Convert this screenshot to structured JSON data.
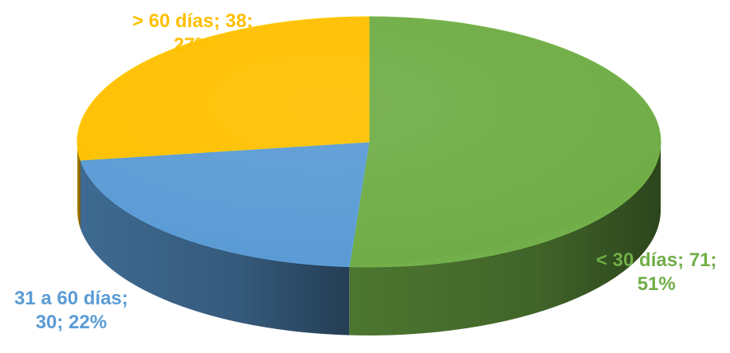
{
  "chart_data": {
    "type": "pie",
    "style": "3d",
    "title": "",
    "legend": "none",
    "categories": [
      "< 30 días",
      "31 a 60 días",
      "> 60 días"
    ],
    "values": [
      71,
      30,
      38
    ],
    "percentages": [
      "51%",
      "22%",
      "27%"
    ],
    "colors": [
      "#70AD47",
      "#5B9BD5",
      "#FFC000"
    ],
    "labels": [
      {
        "line1": "< 30 días; 71;",
        "line2": "51%"
      },
      {
        "line1": "31 a 60 días;",
        "line2": "30; 22%"
      },
      {
        "line1": "> 60 días; 38;",
        "line2": "27%"
      }
    ]
  }
}
